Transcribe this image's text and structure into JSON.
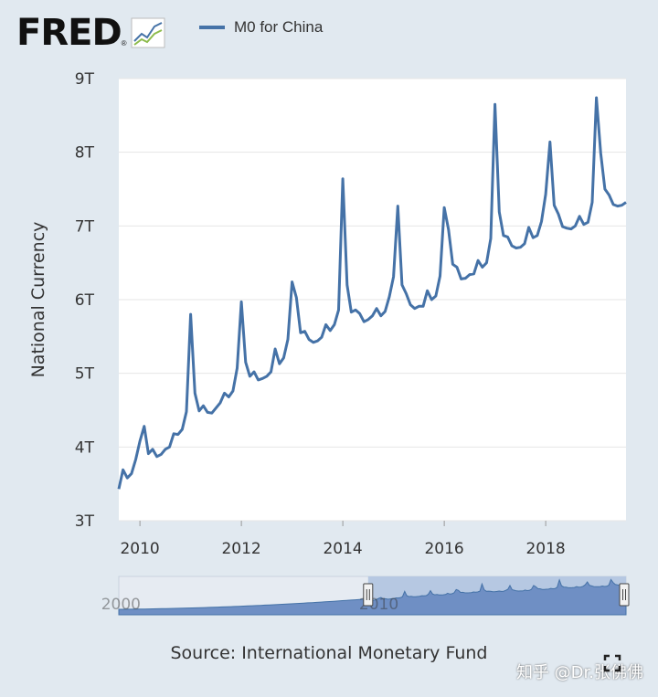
{
  "header": {
    "logo_text": "FRED",
    "logo_reg": "®",
    "legend_label": "M0 for China"
  },
  "colors": {
    "series": "#4572a7",
    "navigator_fill": "#6f8fc4",
    "background": "#e1e9f0",
    "plot": "#ffffff"
  },
  "icons": [
    "fred-logo-chart-icon",
    "fullscreen-icon"
  ],
  "source": "Source: International Monetary Fund",
  "watermark": "知乎 @Dr.张佛佛",
  "chart_data": {
    "type": "line",
    "title": "",
    "xlabel": "",
    "ylabel": "National Currency",
    "xlim": [
      "2009-08",
      "2019-08"
    ],
    "ylim": [
      3,
      9
    ],
    "y_ticks": [
      "3T",
      "4T",
      "5T",
      "6T",
      "7T",
      "8T",
      "9T"
    ],
    "x_ticks": [
      "2010",
      "2012",
      "2014",
      "2016",
      "2018"
    ],
    "grid": "horizontal",
    "legend": "top-left",
    "series": [
      {
        "name": "M0 for China",
        "unit": "trillion",
        "x": [
          "2009-08",
          "2009-09",
          "2009-10",
          "2009-11",
          "2009-12",
          "2010-01",
          "2010-02",
          "2010-03",
          "2010-04",
          "2010-05",
          "2010-06",
          "2010-07",
          "2010-08",
          "2010-09",
          "2010-10",
          "2010-11",
          "2010-12",
          "2011-01",
          "2011-02",
          "2011-03",
          "2011-04",
          "2011-05",
          "2011-06",
          "2011-07",
          "2011-08",
          "2011-09",
          "2011-10",
          "2011-11",
          "2011-12",
          "2012-01",
          "2012-02",
          "2012-03",
          "2012-04",
          "2012-05",
          "2012-06",
          "2012-07",
          "2012-08",
          "2012-09",
          "2012-10",
          "2012-11",
          "2012-12",
          "2013-01",
          "2013-02",
          "2013-03",
          "2013-04",
          "2013-05",
          "2013-06",
          "2013-07",
          "2013-08",
          "2013-09",
          "2013-10",
          "2013-11",
          "2013-12",
          "2014-01",
          "2014-02",
          "2014-03",
          "2014-04",
          "2014-05",
          "2014-06",
          "2014-07",
          "2014-08",
          "2014-09",
          "2014-10",
          "2014-11",
          "2014-12",
          "2015-01",
          "2015-02",
          "2015-03",
          "2015-04",
          "2015-05",
          "2015-06",
          "2015-07",
          "2015-08",
          "2015-09",
          "2015-10",
          "2015-11",
          "2015-12",
          "2016-01",
          "2016-02",
          "2016-03",
          "2016-04",
          "2016-05",
          "2016-06",
          "2016-07",
          "2016-08",
          "2016-09",
          "2016-10",
          "2016-11",
          "2016-12",
          "2017-01",
          "2017-02",
          "2017-03",
          "2017-04",
          "2017-05",
          "2017-06",
          "2017-07",
          "2017-08",
          "2017-09",
          "2017-10",
          "2017-11",
          "2017-12",
          "2018-01",
          "2018-02",
          "2018-03",
          "2018-04",
          "2018-05",
          "2018-06",
          "2018-07",
          "2018-08",
          "2018-09",
          "2018-10",
          "2018-11",
          "2018-12",
          "2019-01",
          "2019-02",
          "2019-03",
          "2019-04",
          "2019-05",
          "2019-06",
          "2019-07",
          "2019-08"
        ],
        "values": [
          3.43,
          3.69,
          3.58,
          3.64,
          3.83,
          4.08,
          4.28,
          3.91,
          3.97,
          3.87,
          3.9,
          3.97,
          4.0,
          4.18,
          4.17,
          4.24,
          4.48,
          5.8,
          4.73,
          4.49,
          4.56,
          4.47,
          4.46,
          4.53,
          4.6,
          4.73,
          4.68,
          4.76,
          5.07,
          5.97,
          5.15,
          4.96,
          5.02,
          4.91,
          4.93,
          4.96,
          5.02,
          5.33,
          5.13,
          5.21,
          5.46,
          6.24,
          6.03,
          5.55,
          5.57,
          5.46,
          5.42,
          5.44,
          5.49,
          5.66,
          5.58,
          5.66,
          5.86,
          7.64,
          6.2,
          5.83,
          5.86,
          5.81,
          5.7,
          5.73,
          5.78,
          5.88,
          5.78,
          5.84,
          6.04,
          6.31,
          7.27,
          6.2,
          6.08,
          5.93,
          5.88,
          5.91,
          5.91,
          6.12,
          6.0,
          6.05,
          6.32,
          7.25,
          6.95,
          6.48,
          6.44,
          6.28,
          6.29,
          6.34,
          6.35,
          6.53,
          6.44,
          6.5,
          6.83,
          8.65,
          7.19,
          6.87,
          6.85,
          6.73,
          6.7,
          6.71,
          6.76,
          6.98,
          6.84,
          6.87,
          7.06,
          7.43,
          8.14,
          7.28,
          7.16,
          6.99,
          6.97,
          6.96,
          7.0,
          7.13,
          7.02,
          7.05,
          7.32,
          8.74,
          7.99,
          7.5,
          7.42,
          7.29,
          7.27,
          7.28,
          7.32
        ]
      }
    ],
    "navigator": {
      "x_ticks": [
        "2000",
        "2010"
      ],
      "selected_range": [
        "2009-08",
        "2019-08"
      ],
      "full_range": [
        "1999-12",
        "2019-08"
      ]
    }
  }
}
